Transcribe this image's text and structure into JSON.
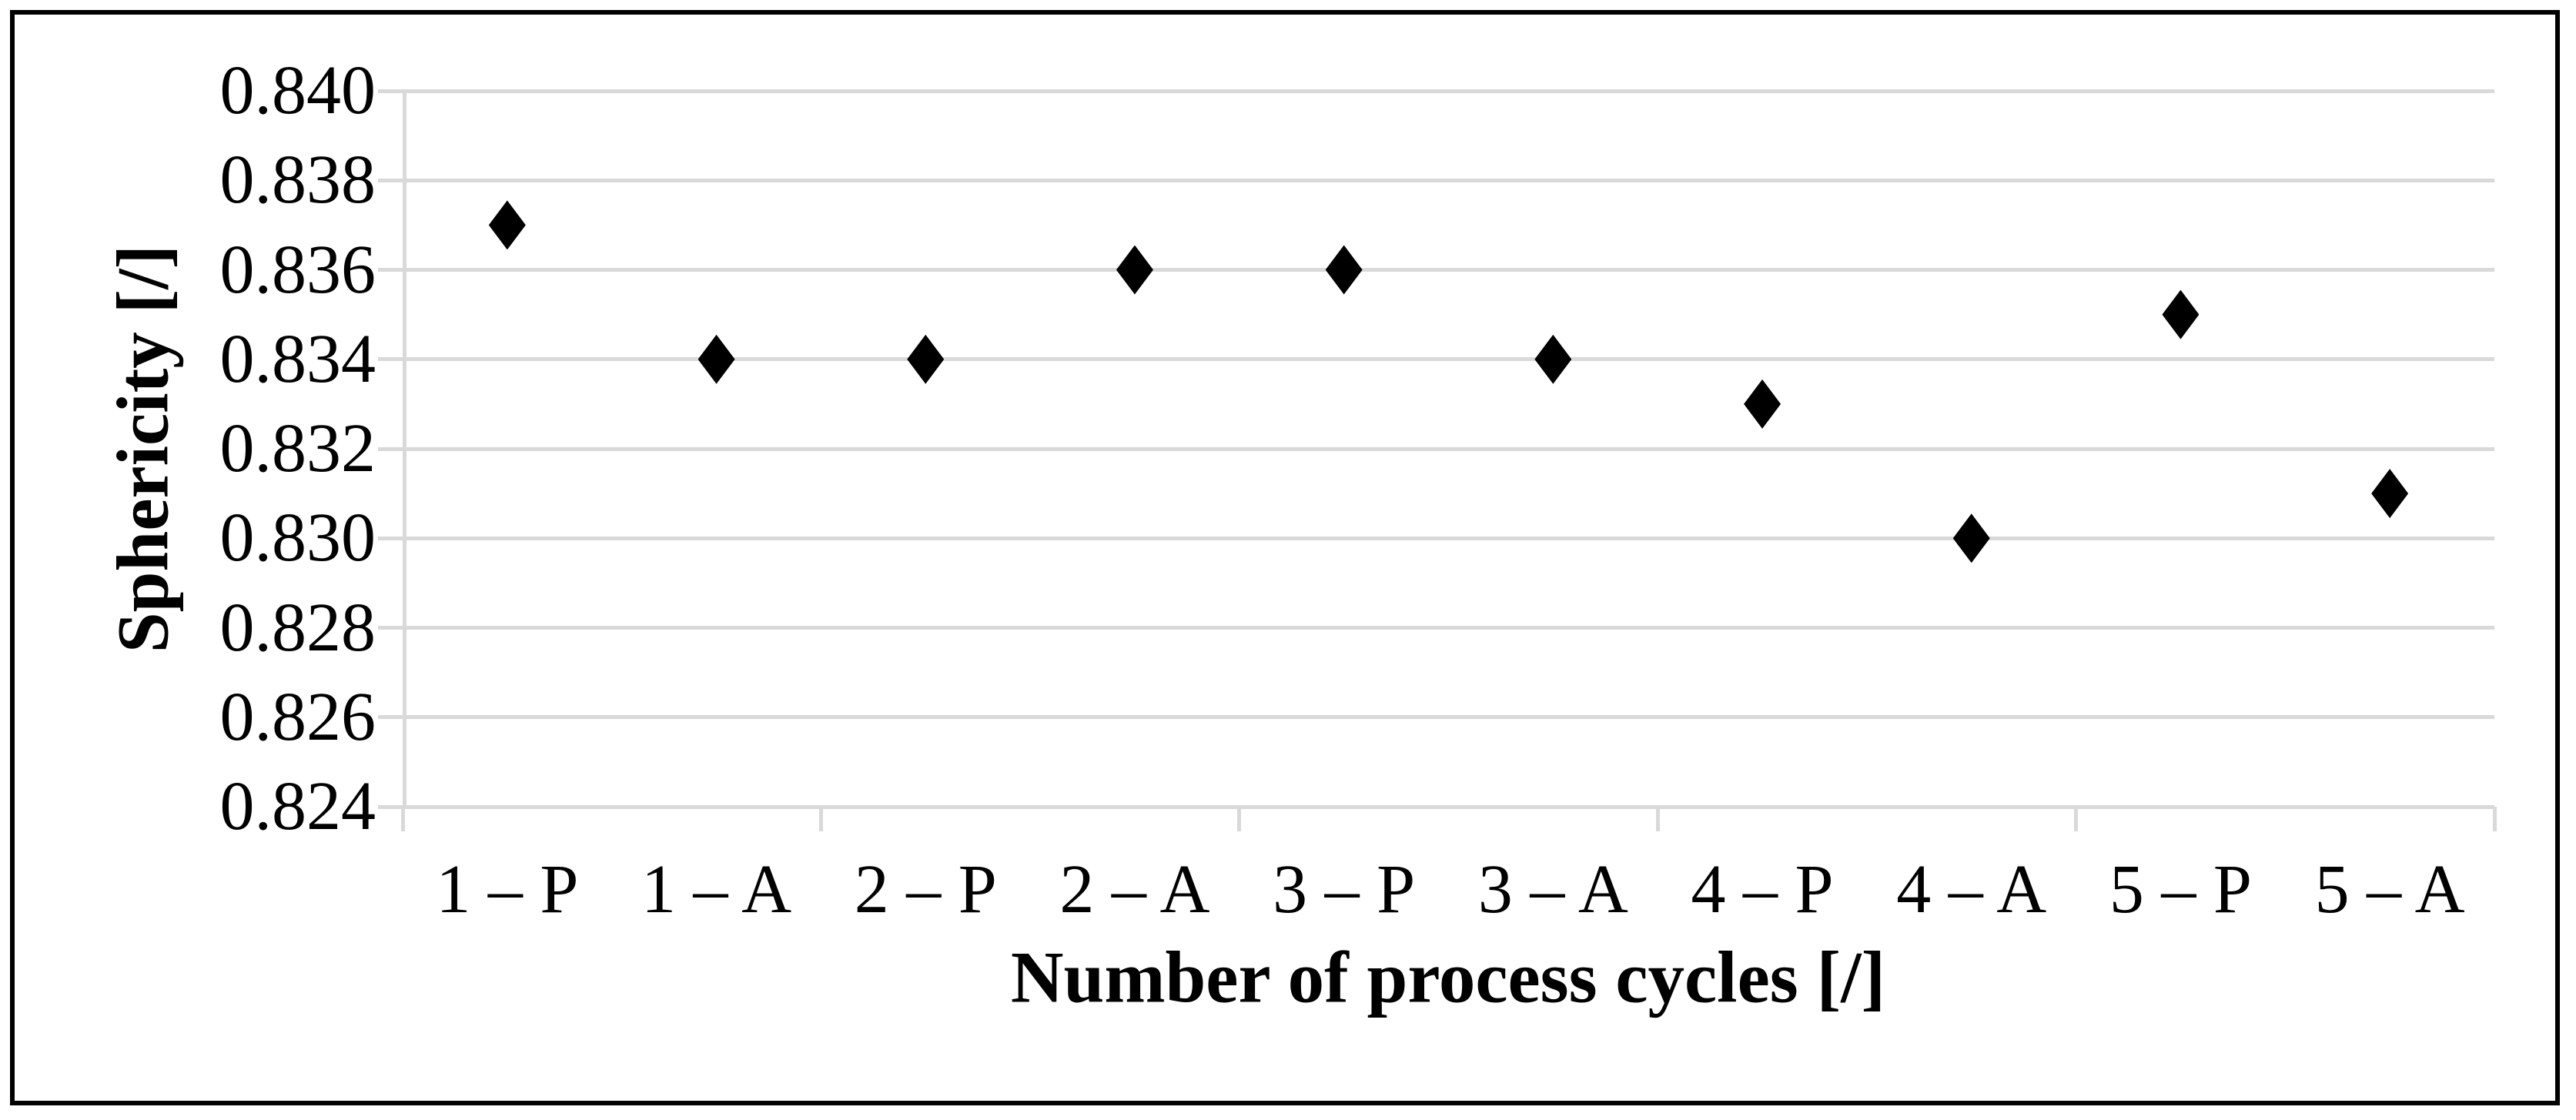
{
  "figure": {
    "background": "#ffffff",
    "border_color": "#000000"
  },
  "chart_data": {
    "type": "scatter",
    "title": "",
    "xlabel": "Number of process cycles [/]",
    "ylabel": "Sphericity [/]",
    "categories": [
      "1 – P",
      "1 – A",
      "2 – P",
      "2 – A",
      "3 – P",
      "3 – A",
      "4 – P",
      "4 – A",
      "5 – P",
      "5 – A"
    ],
    "values": [
      0.837,
      0.834,
      0.834,
      0.836,
      0.836,
      0.834,
      0.833,
      0.83,
      0.835,
      0.831
    ],
    "ylim": [
      0.824,
      0.84
    ],
    "yticks": [
      "0.840",
      "0.838",
      "0.836",
      "0.834",
      "0.832",
      "0.830",
      "0.828",
      "0.826",
      "0.824"
    ],
    "x_tick_interval": 2,
    "grid": "horizontal-on",
    "legend": "none",
    "marker": {
      "shape": "diamond",
      "color": "#000000"
    },
    "gridline_color": "#d9d9d9",
    "axis_color": "#d9d9d9",
    "text_color": "#000000"
  }
}
